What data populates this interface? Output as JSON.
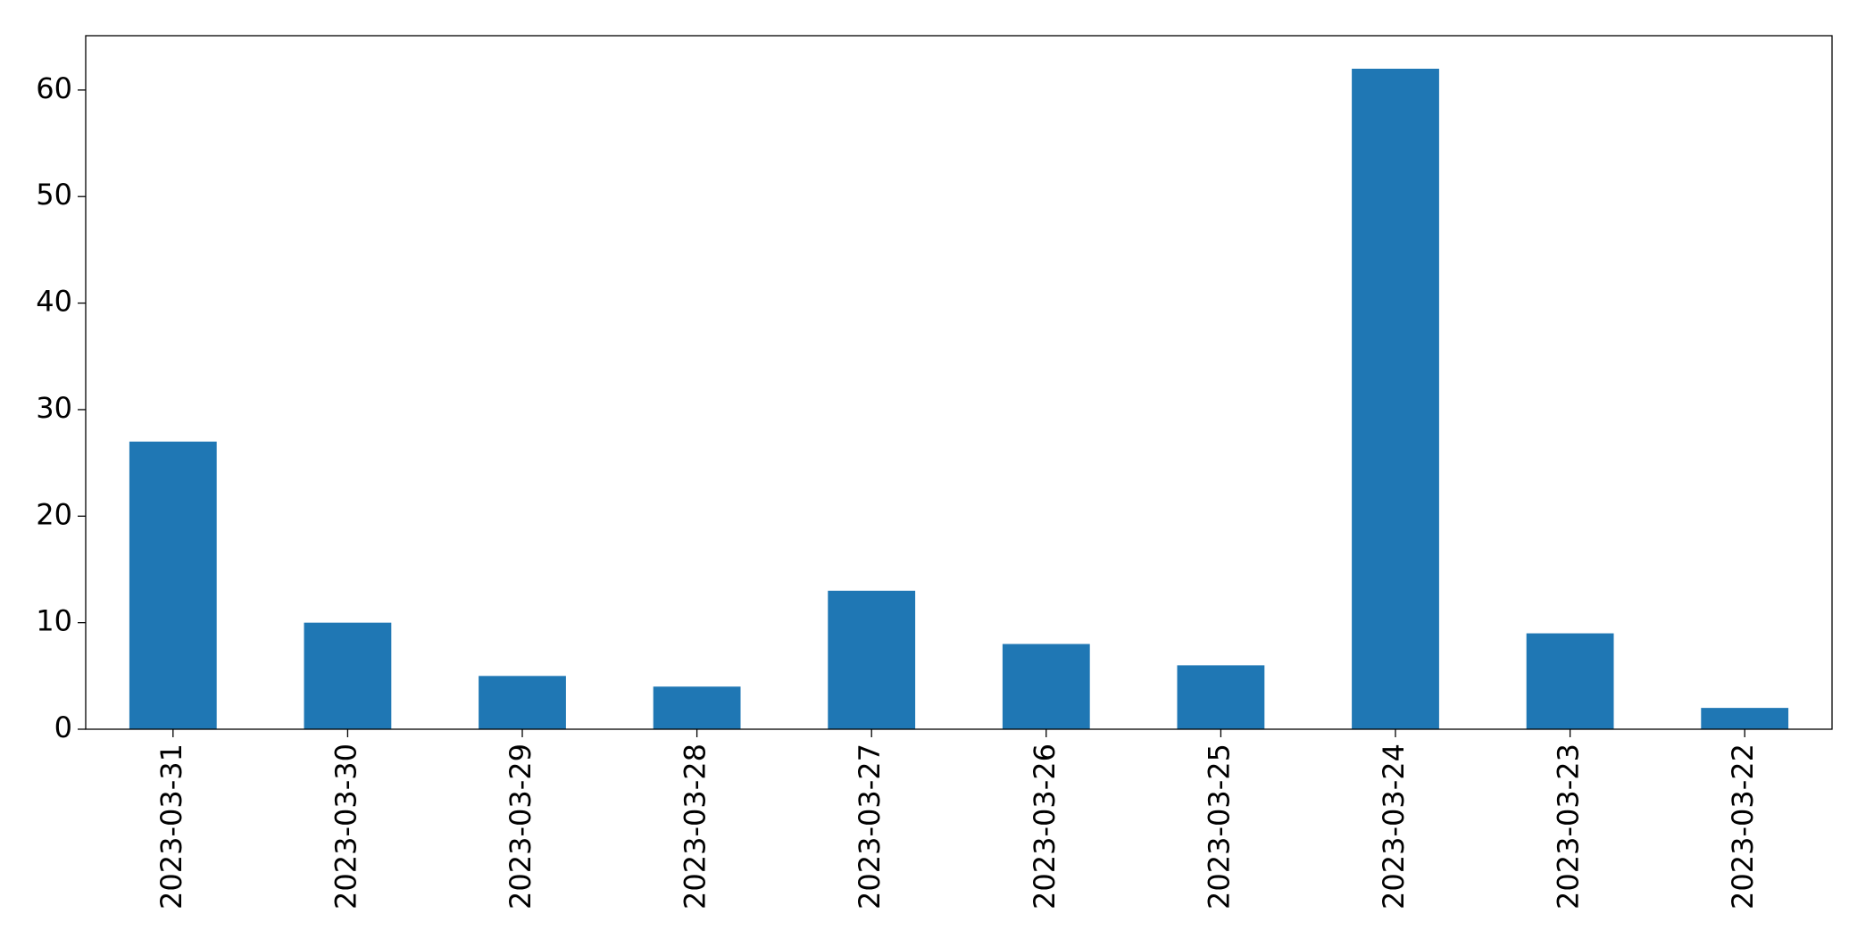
{
  "chart_data": {
    "type": "bar",
    "categories": [
      "2023-03-31",
      "2023-03-30",
      "2023-03-29",
      "2023-03-28",
      "2023-03-27",
      "2023-03-26",
      "2023-03-25",
      "2023-03-24",
      "2023-03-23",
      "2023-03-22"
    ],
    "values": [
      27,
      10,
      5,
      4,
      13,
      8,
      6,
      62,
      9,
      2
    ],
    "color": "#1f77b4",
    "ylim": [
      0,
      65.1
    ],
    "yticks": [
      0,
      10,
      20,
      30,
      40,
      50,
      60
    ],
    "grid": false
  }
}
